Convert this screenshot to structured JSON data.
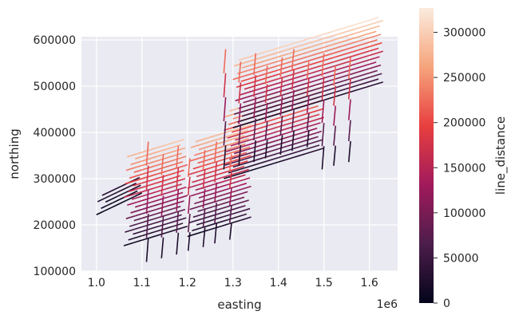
{
  "chart_data": {
    "type": "line",
    "xlabel": "easting",
    "ylabel": "northing",
    "x_offset_label": "1e6",
    "xlim": [
      967000,
      1662000
    ],
    "ylim": [
      100000,
      607000
    ],
    "x_ticks": [
      1.0,
      1.1,
      1.2,
      1.3,
      1.4,
      1.5,
      1.6
    ],
    "x_tick_labels": [
      "1.0",
      "1.1",
      "1.2",
      "1.3",
      "1.4",
      "1.5",
      "1.6"
    ],
    "y_ticks": [
      100000,
      200000,
      300000,
      400000,
      500000,
      600000
    ],
    "y_tick_labels": [
      "100000",
      "200000",
      "300000",
      "400000",
      "500000",
      "600000"
    ],
    "grid": true,
    "colorbar": {
      "label": "line_distance",
      "range": [
        0,
        327000
      ],
      "ticks": [
        0,
        50000,
        100000,
        150000,
        200000,
        250000,
        300000
      ],
      "tick_labels": [
        "0",
        "50000",
        "100000",
        "150000",
        "200000",
        "250000",
        "300000"
      ],
      "colormap": "rocket"
    },
    "survey_blocks": [
      {
        "x_start": 1000000,
        "x_end": 1100000,
        "y_start": 222000,
        "y_end": 262000,
        "slope": 0.47,
        "spacing": 9000,
        "direction": "east-west",
        "distance_max": 40000
      },
      {
        "x_start": 1060000,
        "x_end": 1200000,
        "y_start": 155000,
        "y_end": 345000,
        "slope": 0.3,
        "spacing": 9500,
        "direction": "east-west",
        "distance_max": 300000
      },
      {
        "x_start": 1200000,
        "x_end": 1340000,
        "y_start": 175000,
        "y_end": 375000,
        "slope": 0.3,
        "spacing": 9500,
        "direction": "east-west",
        "distance_max": 300000
      },
      {
        "x_start": 1280000,
        "x_end": 1500000,
        "y_start": 300000,
        "y_end": 445000,
        "slope": 0.3,
        "spacing": 9500,
        "direction": "east-west",
        "distance_max": 310000
      },
      {
        "x_start": 1300000,
        "x_end": 1630000,
        "y_start": 410000,
        "y_end": 550000,
        "slope": 0.3,
        "spacing": 9500,
        "direction": "east-west",
        "distance_max": 327000
      },
      {
        "x_start": 1110000,
        "x_end": 1290000,
        "y_start": 120000,
        "y_end": 380000,
        "spacing": 30000,
        "direction": "north-south",
        "distance_max": 250000
      },
      {
        "x_start": 1280000,
        "x_end": 1560000,
        "y_start": 320000,
        "y_end": 580000,
        "spacing": 30000,
        "direction": "north-south",
        "distance_max": 250000
      }
    ]
  }
}
